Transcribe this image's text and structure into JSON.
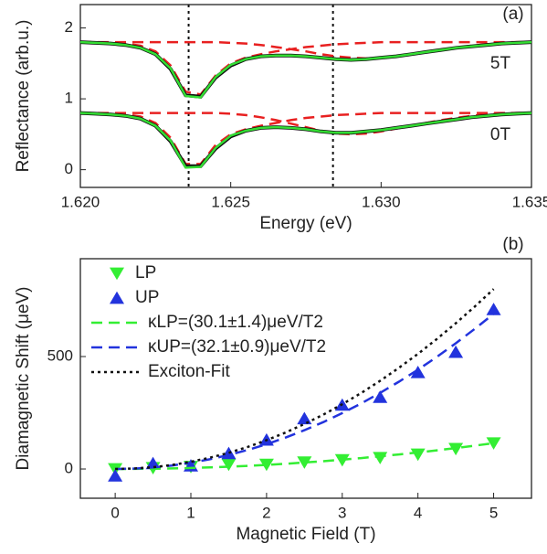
{
  "chart_data": [
    {
      "type": "line",
      "panel_label": "(a)",
      "xlabel": "Energy (eV)",
      "ylabel": "Reflectance (arb.u.)",
      "annotations": [
        "5T",
        "0T"
      ],
      "x": [
        1.62,
        1.6205,
        1.621,
        1.6215,
        1.622,
        1.6225,
        1.623,
        1.6235,
        1.624,
        1.6245,
        1.625,
        1.6255,
        1.626,
        1.6265,
        1.627,
        1.6275,
        1.628,
        1.6285,
        1.629,
        1.6295,
        1.63,
        1.6305,
        1.631,
        1.6315,
        1.632,
        1.6325,
        1.633,
        1.6335,
        1.634,
        1.6345,
        1.635
      ],
      "series": [
        {
          "color": "#e82020",
          "style": "dash",
          "values": [
            1.8,
            1.8,
            1.79,
            1.78,
            1.75,
            1.67,
            1.47,
            1.1,
            1.06,
            1.33,
            1.5,
            1.58,
            1.63,
            1.67,
            1.7,
            1.73,
            1.75,
            1.77,
            1.78,
            1.79,
            1.8,
            1.8,
            1.8,
            1.8,
            1.8,
            1.8,
            1.8,
            1.8,
            1.8,
            1.8,
            1.8
          ]
        },
        {
          "color": "#e82020",
          "style": "dash",
          "values": [
            1.8,
            1.8,
            1.8,
            1.8,
            1.8,
            1.8,
            1.8,
            1.8,
            1.8,
            1.8,
            1.79,
            1.78,
            1.76,
            1.73,
            1.7,
            1.67,
            1.63,
            1.6,
            1.58,
            1.57,
            1.58,
            1.6,
            1.63,
            1.66,
            1.69,
            1.72,
            1.75,
            1.77,
            1.79,
            1.8,
            1.8
          ]
        },
        {
          "color": "#e82020",
          "style": "dash",
          "values": [
            0.8,
            0.8,
            0.79,
            0.78,
            0.75,
            0.66,
            0.45,
            0.08,
            0.08,
            0.35,
            0.5,
            0.57,
            0.62,
            0.66,
            0.7,
            0.73,
            0.75,
            0.77,
            0.78,
            0.79,
            0.8,
            0.8,
            0.8,
            0.8,
            0.8,
            0.8,
            0.8,
            0.8,
            0.8,
            0.8,
            0.8
          ]
        },
        {
          "color": "#e82020",
          "style": "dash",
          "values": [
            0.8,
            0.8,
            0.8,
            0.8,
            0.8,
            0.8,
            0.8,
            0.8,
            0.8,
            0.8,
            0.79,
            0.77,
            0.74,
            0.7,
            0.65,
            0.6,
            0.55,
            0.51,
            0.5,
            0.51,
            0.54,
            0.58,
            0.62,
            0.66,
            0.7,
            0.73,
            0.76,
            0.78,
            0.79,
            0.8,
            0.8
          ]
        },
        {
          "color": "#111111",
          "style": "data",
          "values": [
            1.8,
            1.79,
            1.78,
            1.76,
            1.72,
            1.63,
            1.42,
            1.05,
            1.03,
            1.3,
            1.47,
            1.56,
            1.6,
            1.61,
            1.61,
            1.6,
            1.58,
            1.56,
            1.55,
            1.56,
            1.58,
            1.6,
            1.63,
            1.66,
            1.69,
            1.72,
            1.74,
            1.76,
            1.78,
            1.79,
            1.8
          ]
        },
        {
          "color": "#111111",
          "style": "data",
          "values": [
            0.8,
            0.79,
            0.78,
            0.76,
            0.72,
            0.62,
            0.4,
            0.05,
            0.05,
            0.3,
            0.47,
            0.55,
            0.59,
            0.6,
            0.59,
            0.57,
            0.54,
            0.52,
            0.52,
            0.54,
            0.56,
            0.59,
            0.62,
            0.65,
            0.68,
            0.71,
            0.74,
            0.76,
            0.78,
            0.79,
            0.8
          ]
        },
        {
          "color": "#33dd33",
          "style": "solid",
          "values": [
            1.8,
            1.79,
            1.78,
            1.76,
            1.72,
            1.63,
            1.43,
            1.04,
            1.02,
            1.31,
            1.48,
            1.56,
            1.6,
            1.61,
            1.61,
            1.6,
            1.58,
            1.56,
            1.55,
            1.56,
            1.58,
            1.6,
            1.63,
            1.66,
            1.69,
            1.72,
            1.74,
            1.76,
            1.78,
            1.79,
            1.8
          ]
        },
        {
          "color": "#33dd33",
          "style": "solid",
          "values": [
            0.8,
            0.79,
            0.78,
            0.76,
            0.72,
            0.62,
            0.41,
            0.03,
            0.04,
            0.31,
            0.48,
            0.55,
            0.59,
            0.6,
            0.59,
            0.57,
            0.54,
            0.52,
            0.52,
            0.54,
            0.56,
            0.59,
            0.62,
            0.65,
            0.68,
            0.71,
            0.74,
            0.76,
            0.78,
            0.79,
            0.8
          ]
        }
      ],
      "vlines": [
        1.6236,
        1.6284
      ],
      "xlim": [
        1.62,
        1.635
      ],
      "ylim": [
        -0.25,
        2.33
      ],
      "xticks": [
        {
          "value": 1.62,
          "label": "1.620"
        },
        {
          "value": 1.625,
          "label": "1.625"
        },
        {
          "value": 1.63,
          "label": "1.630"
        },
        {
          "value": 1.635,
          "label": "1.635"
        }
      ],
      "yticks": [
        0,
        1,
        2
      ]
    },
    {
      "type": "scatter",
      "panel_label": "(b)",
      "xlabel": "Magnetic Field (T)",
      "ylabel": "Diamagnetic Shift (μeV)",
      "series": [
        {
          "name": "LP",
          "color": "#33ee33",
          "style": "triangle-down",
          "x": [
            0,
            0.5,
            1,
            1.5,
            2,
            2.5,
            3,
            3.5,
            4,
            4.5,
            5
          ],
          "values": [
            0,
            5,
            10,
            20,
            20,
            30,
            40,
            50,
            65,
            90,
            115
          ]
        },
        {
          "name": "UP",
          "color": "#2233dd",
          "style": "triangle-up",
          "x": [
            0,
            0.5,
            1,
            1.5,
            2,
            2.5,
            3,
            3.5,
            4,
            4.5,
            5
          ],
          "values": [
            -30,
            25,
            15,
            70,
            130,
            225,
            285,
            320,
            430,
            520,
            710
          ]
        },
        {
          "name": "κLP=(30.1±1.4)μeV/T2",
          "color": "#33ee33",
          "style": "dash",
          "x": [
            0,
            0.25,
            0.5,
            0.75,
            1,
            1.25,
            1.5,
            1.75,
            2,
            2.25,
            2.5,
            2.75,
            3,
            3.25,
            3.5,
            3.75,
            4,
            4.25,
            4.5,
            4.75,
            5
          ],
          "values": [
            0,
            0.3,
            1.2,
            2.6,
            4.6,
            7.2,
            10.4,
            14.1,
            18.4,
            23.3,
            28.8,
            34.8,
            41.4,
            48.6,
            56.4,
            64.7,
            73.6,
            83.1,
            93.2,
            103.8,
            115
          ]
        },
        {
          "name": "κUP=(32.1±0.9)μeV/T2",
          "color": "#2233dd",
          "style": "dash",
          "x": [
            0,
            0.25,
            0.5,
            0.75,
            1,
            1.25,
            1.5,
            1.75,
            2,
            2.25,
            2.5,
            2.75,
            3,
            3.25,
            3.5,
            3.75,
            4,
            4.25,
            4.5,
            4.75,
            5
          ],
          "values": [
            0,
            1.7,
            6.9,
            15.5,
            27.6,
            43.1,
            62.1,
            84.5,
            110.4,
            139.7,
            172.5,
            208.7,
            248.4,
            291.5,
            338.1,
            388.1,
            441.6,
            498.5,
            558.9,
            622.7,
            690
          ]
        },
        {
          "name": "Exciton-Fit",
          "color": "#111111",
          "style": "dot",
          "x": [
            0,
            0.25,
            0.5,
            0.75,
            1,
            1.25,
            1.5,
            1.75,
            2,
            2.25,
            2.5,
            2.75,
            3,
            3.25,
            3.5,
            3.75,
            4,
            4.25,
            4.5,
            4.75,
            5
          ],
          "values": [
            0,
            2,
            8,
            18,
            32,
            50,
            72,
            98,
            128,
            162,
            200,
            242,
            288,
            338,
            392,
            450,
            512,
            578,
            648,
            722,
            800
          ]
        }
      ],
      "xlim": [
        -0.46,
        5.5
      ],
      "ylim": [
        -130,
        935
      ],
      "xticks": [
        0,
        1,
        2,
        3,
        4,
        5
      ],
      "yticks": [
        0,
        500
      ]
    }
  ]
}
